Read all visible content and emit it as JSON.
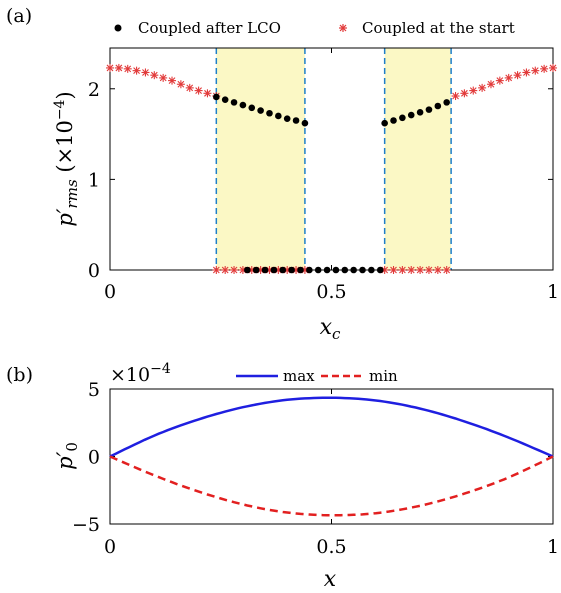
{
  "panel_labels": {
    "a": "(a)",
    "b": "(b)"
  },
  "chart_data": [
    {
      "id": "a",
      "type": "scatter",
      "xlabel": "x_c",
      "ylabel": "p'_rms (×10^-4)",
      "xlim": [
        0,
        1
      ],
      "ylim": [
        0,
        2.45
      ],
      "xticks": [
        0,
        0.5,
        1
      ],
      "xticklabels": [
        "0",
        "0.5",
        "1"
      ],
      "yticks": [
        0,
        1,
        2
      ],
      "yticklabels": [
        "0",
        "1",
        "2"
      ],
      "legend_position": "top",
      "series": [
        {
          "name": "Coupled after LCO",
          "marker": "dot",
          "color": "#000000",
          "x": [
            0.24,
            0.26,
            0.28,
            0.3,
            0.32,
            0.34,
            0.36,
            0.38,
            0.4,
            0.42,
            0.44,
            0.62,
            0.64,
            0.66,
            0.68,
            0.7,
            0.72,
            0.74,
            0.76,
            0.31,
            0.33,
            0.35,
            0.37,
            0.39,
            0.41,
            0.43,
            0.45,
            0.47,
            0.49,
            0.51,
            0.53,
            0.55,
            0.57,
            0.59,
            0.61
          ],
          "y": [
            1.91,
            1.88,
            1.85,
            1.82,
            1.79,
            1.76,
            1.73,
            1.7,
            1.67,
            1.65,
            1.62,
            1.62,
            1.65,
            1.68,
            1.71,
            1.74,
            1.77,
            1.81,
            1.85,
            0,
            0,
            0,
            0,
            0,
            0,
            0,
            0,
            0,
            0,
            0,
            0,
            0,
            0,
            0,
            0
          ]
        },
        {
          "name": "Coupled at the start",
          "marker": "asterisk",
          "color": "#e23a3a",
          "x": [
            0,
            0.02,
            0.04,
            0.06,
            0.08,
            0.1,
            0.12,
            0.14,
            0.16,
            0.18,
            0.2,
            0.22,
            0.24,
            0.78,
            0.8,
            0.82,
            0.84,
            0.86,
            0.88,
            0.9,
            0.92,
            0.94,
            0.96,
            0.98,
            1,
            0.24,
            0.26,
            0.28,
            0.3,
            0.32,
            0.34,
            0.36,
            0.38,
            0.4,
            0.42,
            0.44,
            0.62,
            0.64,
            0.66,
            0.68,
            0.7,
            0.72,
            0.74,
            0.76
          ],
          "y": [
            2.23,
            2.23,
            2.22,
            2.2,
            2.18,
            2.15,
            2.12,
            2.09,
            2.05,
            2.01,
            1.98,
            1.95,
            1.92,
            1.92,
            1.95,
            1.98,
            2.01,
            2.05,
            2.09,
            2.12,
            2.15,
            2.18,
            2.2,
            2.22,
            2.23,
            0,
            0,
            0,
            0,
            0,
            0,
            0,
            0,
            0,
            0,
            0,
            0,
            0,
            0,
            0,
            0,
            0,
            0,
            0
          ]
        }
      ],
      "annotations": {
        "shaded_regions": [
          [
            0.24,
            0.44
          ],
          [
            0.62,
            0.77
          ]
        ],
        "dashed_lines": [
          0.24,
          0.44,
          0.62,
          0.77
        ],
        "shade_color": "#fbf8c5",
        "dashed_color": "#1e7fc8",
        "y_scale_label": "×10^-4"
      }
    },
    {
      "id": "b",
      "type": "line",
      "xlabel": "x",
      "ylabel": "p'_0",
      "xlim": [
        0,
        1
      ],
      "ylim": [
        -5,
        5
      ],
      "xticks": [
        0,
        0.5,
        1
      ],
      "xticklabels": [
        "0",
        "0.5",
        "1"
      ],
      "yticks": [
        -5,
        0,
        5
      ],
      "yticklabels": [
        "-5",
        "0",
        "5"
      ],
      "y_exponent": "×10^-4",
      "legend_position": "top",
      "series": [
        {
          "name": "max",
          "color": "#1f1fe0",
          "style": "solid",
          "x": [
            0,
            0.1,
            0.2,
            0.3,
            0.4,
            0.5,
            0.6,
            0.7,
            0.8,
            0.9,
            1
          ],
          "y": [
            0,
            1.55,
            2.75,
            3.65,
            4.2,
            4.35,
            4.15,
            3.55,
            2.6,
            1.4,
            0
          ]
        },
        {
          "name": "min",
          "color": "#e22020",
          "style": "dashed",
          "x": [
            0,
            0.1,
            0.2,
            0.3,
            0.4,
            0.5,
            0.6,
            0.7,
            0.8,
            0.9,
            1
          ],
          "y": [
            0,
            -1.4,
            -2.6,
            -3.55,
            -4.15,
            -4.35,
            -4.2,
            -3.65,
            -2.75,
            -1.55,
            0
          ]
        }
      ]
    }
  ]
}
